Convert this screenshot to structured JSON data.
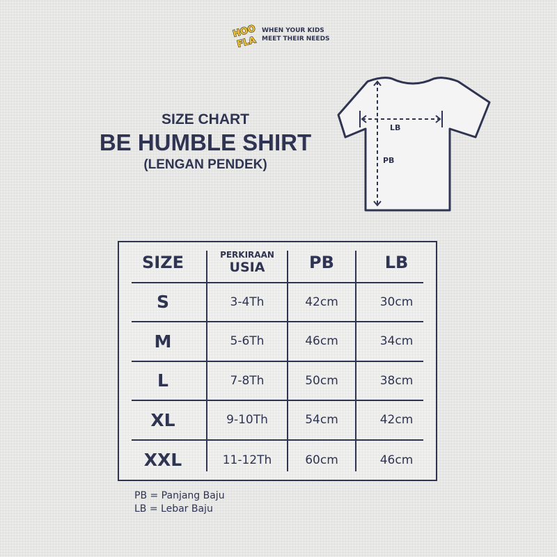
{
  "brand": {
    "logo_text": "HOO FLA",
    "tagline_line1": "WHEN YOUR KIDS",
    "tagline_line2": "MEET THEIR NEEDS",
    "logo_color": "#f5c518"
  },
  "title": {
    "line1": "SIZE CHART",
    "line2": "BE HUMBLE SHIRT",
    "line3": "(LENGAN PENDEK)"
  },
  "diagram": {
    "width_label": "LB",
    "length_label": "PB"
  },
  "table": {
    "headers": {
      "size": "SIZE",
      "age_small": "PERKIRAAN",
      "age_big": "USIA",
      "pb": "PB",
      "lb": "LB"
    },
    "rows": [
      {
        "size": "S",
        "age": "3-4Th",
        "pb": "42cm",
        "lb": "30cm"
      },
      {
        "size": "M",
        "age": "5-6Th",
        "pb": "46cm",
        "lb": "34cm"
      },
      {
        "size": "L",
        "age": "7-8Th",
        "pb": "50cm",
        "lb": "38cm"
      },
      {
        "size": "XL",
        "age": "9-10Th",
        "pb": "54cm",
        "lb": "42cm"
      },
      {
        "size": "XXL",
        "age": "11-12Th",
        "pb": "60cm",
        "lb": "46cm"
      }
    ]
  },
  "legend": [
    "PB = Panjang Baju",
    "LB = Lebar Baju"
  ],
  "colors": {
    "primary": "#2f3452",
    "background": "#e7e7e6"
  }
}
